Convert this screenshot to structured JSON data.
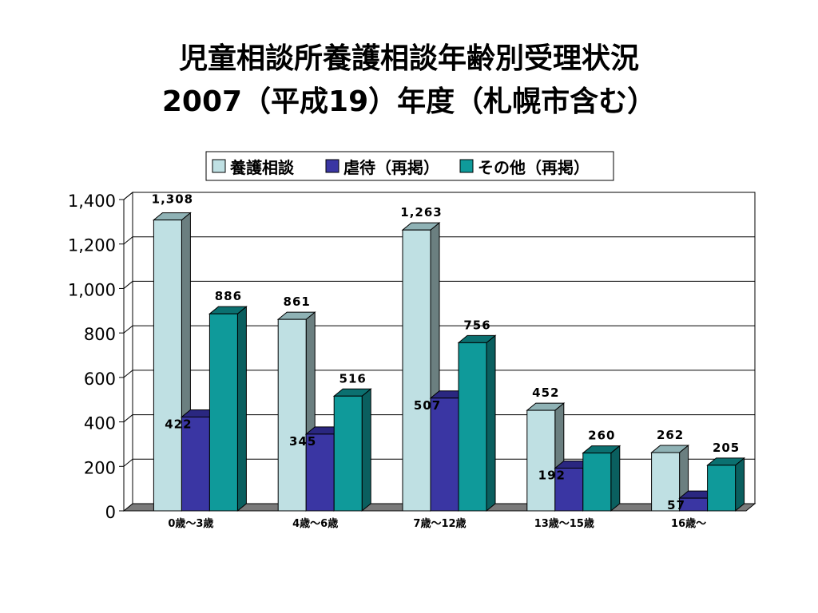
{
  "chart_data": {
    "type": "bar",
    "title": "児童相談所養護相談年齢別受理状況",
    "subtitle": "2007（平成19）年度（札幌市含む）",
    "categories": [
      "0歳～3歳",
      "4歳～6歳",
      "7歳～12歳",
      "13歳～15歳",
      "16歳～"
    ],
    "series": [
      {
        "name": "養護相談",
        "values": [
          1308,
          861,
          1263,
          452,
          262
        ],
        "labels": [
          "1,308",
          "861",
          "1,263",
          "452",
          "262"
        ]
      },
      {
        "name": "虐待（再掲）",
        "values": [
          422,
          345,
          507,
          192,
          57
        ],
        "labels": [
          "422",
          "345",
          "507",
          "192",
          "57"
        ]
      },
      {
        "name": "その他（再掲）",
        "values": [
          886,
          516,
          756,
          260,
          205
        ],
        "labels": [
          "886",
          "516",
          "756",
          "260",
          "205"
        ]
      }
    ],
    "ylim": [
      0,
      1400
    ],
    "yticks": [
      0,
      200,
      400,
      600,
      800,
      1000,
      1200,
      1400
    ],
    "ytick_labels": [
      "0",
      "200",
      "400",
      "600",
      "800",
      "1,000",
      "1,200",
      "1,400"
    ],
    "grid": true,
    "legend_position": "top",
    "colors": {
      "series": [
        "#bfe0e3",
        "#3a36a3",
        "#0f9a9a"
      ],
      "series_side": [
        "#6b7f80",
        "#201d6c",
        "#0a5f5f"
      ],
      "series_top": [
        "#8fb2b5",
        "#2a2780",
        "#0b7070"
      ],
      "floor": "#7a7a7a",
      "grid": "#000000"
    }
  }
}
